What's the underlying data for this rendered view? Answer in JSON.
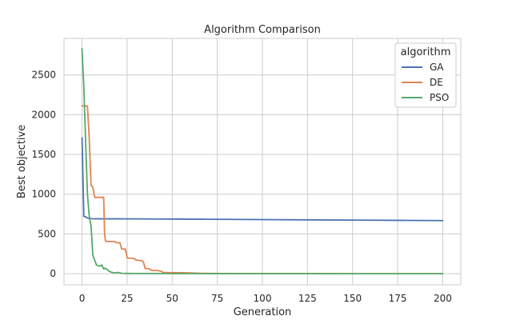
{
  "chart_data": {
    "type": "line",
    "title": "Algorithm Comparison",
    "xlabel": "Generation",
    "ylabel": "Best objective",
    "xlim": [
      -10,
      210
    ],
    "ylim": [
      -140,
      2960
    ],
    "xticks": [
      0,
      25,
      50,
      75,
      100,
      125,
      150,
      175,
      200
    ],
    "yticks": [
      0,
      500,
      1000,
      1500,
      2000,
      2500
    ],
    "grid": true,
    "legend": {
      "title": "algorithm",
      "placement": "top-right"
    },
    "series": [
      {
        "name": "GA",
        "color": "#4c72b0",
        "points": [
          [
            0,
            1710
          ],
          [
            1,
            720
          ],
          [
            2,
            715
          ],
          [
            3,
            700
          ],
          [
            4,
            695
          ],
          [
            5,
            692
          ],
          [
            10,
            690
          ],
          [
            20,
            690
          ],
          [
            30,
            689
          ],
          [
            40,
            688
          ],
          [
            50,
            687
          ],
          [
            75,
            684
          ],
          [
            100,
            680
          ],
          [
            125,
            677
          ],
          [
            150,
            674
          ],
          [
            175,
            671
          ],
          [
            200,
            668
          ]
        ]
      },
      {
        "name": "DE",
        "color": "#dd8452",
        "points": [
          [
            0,
            2110
          ],
          [
            1,
            2110
          ],
          [
            2,
            2110
          ],
          [
            3,
            2110
          ],
          [
            4,
            1700
          ],
          [
            5,
            1110
          ],
          [
            6,
            1090
          ],
          [
            7,
            960
          ],
          [
            8,
            960
          ],
          [
            9,
            960
          ],
          [
            10,
            960
          ],
          [
            11,
            960
          ],
          [
            12,
            960
          ],
          [
            12.5,
            500
          ],
          [
            13,
            410
          ],
          [
            14,
            405
          ],
          [
            15,
            405
          ],
          [
            16,
            405
          ],
          [
            17,
            405
          ],
          [
            18,
            405
          ],
          [
            19,
            390
          ],
          [
            20,
            390
          ],
          [
            21,
            390
          ],
          [
            22,
            310
          ],
          [
            23,
            310
          ],
          [
            24,
            310
          ],
          [
            25,
            200
          ],
          [
            26,
            195
          ],
          [
            27,
            195
          ],
          [
            28,
            195
          ],
          [
            29,
            190
          ],
          [
            30,
            170
          ],
          [
            31,
            170
          ],
          [
            32,
            165
          ],
          [
            33,
            165
          ],
          [
            34,
            150
          ],
          [
            35,
            65
          ],
          [
            36,
            65
          ],
          [
            37,
            65
          ],
          [
            38,
            50
          ],
          [
            39,
            40
          ],
          [
            40,
            40
          ],
          [
            41,
            40
          ],
          [
            42,
            40
          ],
          [
            43,
            35
          ],
          [
            44,
            30
          ],
          [
            45,
            15
          ],
          [
            46,
            15
          ],
          [
            47,
            14
          ],
          [
            50,
            13
          ],
          [
            55,
            12
          ],
          [
            60,
            10
          ],
          [
            65,
            5
          ],
          [
            70,
            3
          ],
          [
            80,
            2
          ],
          [
            100,
            1
          ],
          [
            150,
            0
          ],
          [
            200,
            0
          ]
        ]
      },
      {
        "name": "PSO",
        "color": "#55a868",
        "points": [
          [
            0,
            2830
          ],
          [
            1,
            2350
          ],
          [
            2,
            1650
          ],
          [
            3,
            1000
          ],
          [
            4,
            720
          ],
          [
            5,
            600
          ],
          [
            6,
            230
          ],
          [
            7,
            170
          ],
          [
            8,
            110
          ],
          [
            9,
            100
          ],
          [
            10,
            95
          ],
          [
            11,
            110
          ],
          [
            12,
            60
          ],
          [
            13,
            70
          ],
          [
            14,
            50
          ],
          [
            15,
            30
          ],
          [
            16,
            20
          ],
          [
            17,
            15
          ],
          [
            18,
            10
          ],
          [
            20,
            15
          ],
          [
            22,
            5
          ],
          [
            25,
            3
          ],
          [
            30,
            2
          ],
          [
            40,
            2
          ],
          [
            50,
            1
          ],
          [
            100,
            0
          ],
          [
            150,
            0
          ],
          [
            200,
            0
          ]
        ]
      }
    ]
  }
}
